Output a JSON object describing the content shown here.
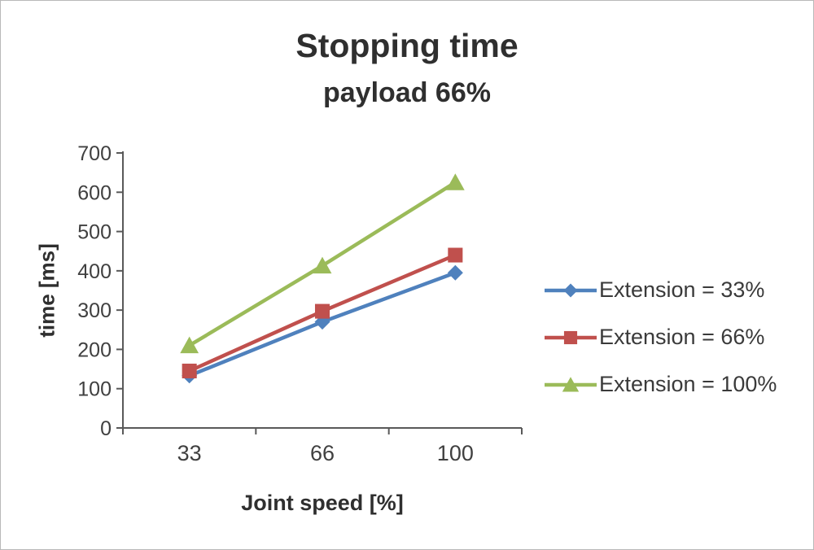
{
  "chart_data": {
    "type": "line",
    "title": "Stopping time",
    "subtitle": "payload 66%",
    "xlabel": "Joint speed [%]",
    "ylabel": "time [ms]",
    "categories": [
      "33",
      "66",
      "100"
    ],
    "ylim": [
      0,
      700
    ],
    "ytick_step": 100,
    "grid": false,
    "legend_position": "right",
    "series": [
      {
        "name": "Extension = 33%",
        "marker": "diamond",
        "color": "#4F81BD",
        "values": [
          133,
          270,
          395
        ]
      },
      {
        "name": "Extension = 66%",
        "marker": "square",
        "color": "#C0504D",
        "values": [
          145,
          297,
          440
        ]
      },
      {
        "name": "Extension = 100%",
        "marker": "triangle",
        "color": "#9BBB59",
        "values": [
          210,
          413,
          625
        ]
      }
    ]
  },
  "colors": {
    "axis": "#595959",
    "tick_text": "#404040",
    "title_text": "#2f2f2f",
    "border": "#b9b9b9",
    "background": "#ffffff"
  }
}
